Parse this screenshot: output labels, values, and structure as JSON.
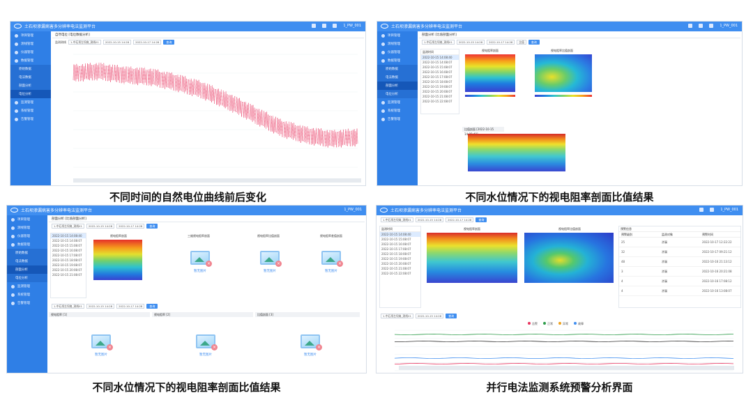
{
  "captions": {
    "c1": "不同时间的自然电位曲线前后变化",
    "c2": "不同水位情况下的视电阻率剖面比值结果",
    "c3": "不同水位情况下的视电阻率剖面比值结果",
    "c4": "并行电法监测系统预警分析界面"
  },
  "app": {
    "title": "土石坝渗漏病害多分辨率电法监测平台",
    "user": "1_PW_001"
  },
  "sidebar": {
    "items": [
      "项目管理",
      "测线管理",
      "仪器管理",
      "数据管理",
      "监测管理",
      "系统管理",
      "告警管理"
    ],
    "subitems": [
      "原始数据",
      "电法数据",
      "剖面分析",
      "电位分析"
    ]
  },
  "p1": {
    "crumb": "自然电位 [电位数据分析]",
    "filter_label": "监测测线",
    "line": "1-中石坝左坝肩_测线01",
    "date_from": "2022-10-15 14:28",
    "date_to": "2022-10-17 14:28",
    "query": "查询"
  },
  "p2": {
    "crumb": "剖面分析 [比值剖面分析]",
    "line": "1-中石坝左坝肩_测线01",
    "date_from": "2022-10-15 14:28",
    "date_to": "2022-10-17 14:28",
    "mode": "比值",
    "query": "查询",
    "list_header": "监测时间",
    "times": [
      "2022-10-15 14:08:40",
      "2022-10-15 14:08:07",
      "2022-10-15 15:08:07",
      "2022-10-15 16:08:07",
      "2022-10-15 17:08:07",
      "2022-10-15 18:08:07",
      "2022-10-15 19:08:07",
      "2022-10-15 20:08:07",
      "2022-10-15 21:08:07",
      "2022-10-15 22:08:07"
    ],
    "panel_a": "视电阻率剖面",
    "panel_b": "视电阻率比值剖面",
    "result_title": "比值剖面 [2022-10-15 14:08:40]"
  },
  "p3": {
    "crumb": "剖面分析 [比值剖面分析]",
    "panel_titles": [
      "视电阻率剖面",
      "三维视电阻率剖面",
      "视电阻率比值剖面",
      "视电阻率差值剖面"
    ],
    "empty": "暂无图片",
    "section_titles": [
      "视电阻率 [1]",
      "视电阻率 [2]",
      "比值剖面 [3]"
    ],
    "times": [
      "2022-10-15 14:08:40",
      "2022-10-15 14:08:07",
      "2022-10-15 15:08:07",
      "2022-10-15 16:08:07",
      "2022-10-15 17:08:07",
      "2022-10-15 18:08:07",
      "2022-10-15 19:08:07",
      "2022-10-15 20:08:07",
      "2022-10-15 21:08:07"
    ]
  },
  "p4": {
    "crumb": "预警分析 [预警分析]",
    "list_header": "监测时间",
    "times": [
      "2022-10-15 14:08:40",
      "2022-10-15 15:08:07",
      "2022-10-15 16:08:07",
      "2022-10-15 17:08:07",
      "2022-10-15 18:08:07",
      "2022-10-15 19:08:07",
      "2022-10-15 20:08:07",
      "2022-10-15 21:08:07",
      "2022-10-15 22:08:07"
    ],
    "panel_a": "视电阻率剖面",
    "panel_b": "视电阻率比值剖面",
    "alarm_title": "预警信息",
    "alarm_cols": [
      "预警级别",
      "监测对象",
      "预警时间"
    ],
    "alarm_rows": [
      [
        "25",
        "渗漏",
        "2022-10-17 12:22:22"
      ],
      [
        "32",
        "渗漏",
        "2022-10-17 09:21:12"
      ],
      [
        "48",
        "渗漏",
        "2022-10-16 21:13:12"
      ],
      [
        "3",
        "渗漏",
        "2022-10-16 20:21:08"
      ],
      [
        "4",
        "渗漏",
        "2022-10-16 17:08:12"
      ],
      [
        "4",
        "渗漏",
        "2022-10-16 13:08:07"
      ]
    ],
    "legend": [
      "告警",
      "正常",
      "异常",
      "故障"
    ],
    "query": "查询"
  },
  "colors": {
    "accent": "#3f8ef0",
    "sidebar": "#2f7fe6",
    "curve": "#e8335e"
  },
  "chart_data": {
    "type": "line",
    "title": "",
    "xlabel": "",
    "ylabel": "",
    "series": [
      {
        "values": [
          -1.6,
          2.1,
          -1.8,
          1.9,
          -2.0,
          2.2,
          -1.5,
          1.7,
          -2.1,
          1.5
        ]
      }
    ],
    "trend": [
      180,
      181,
      179,
      178,
      175,
      171,
      165,
      158,
      151,
      147,
      145,
      146
    ]
  }
}
